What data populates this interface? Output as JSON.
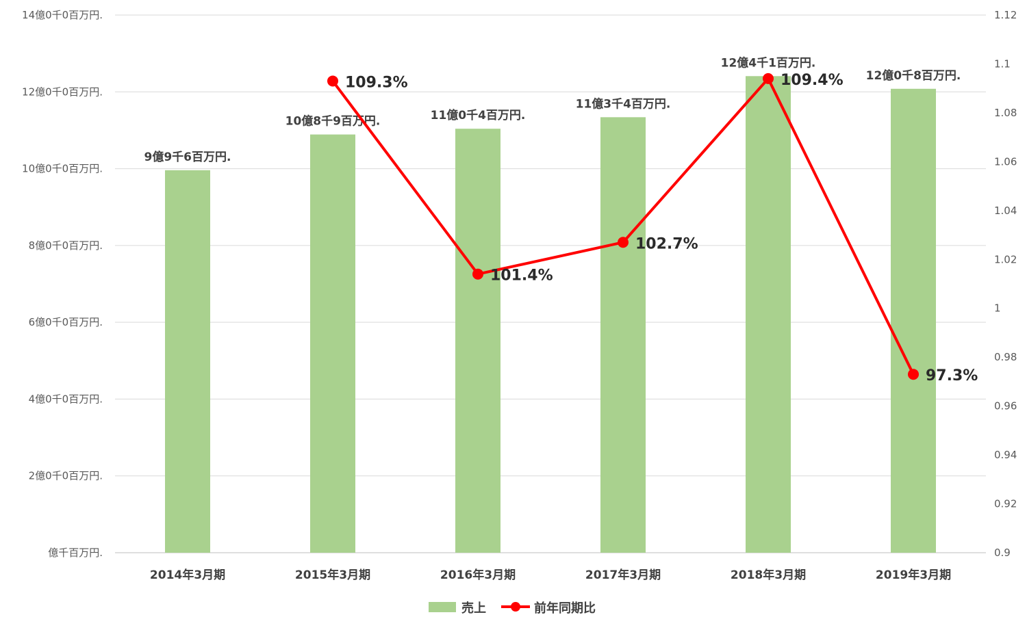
{
  "chart_data": {
    "type": "bar",
    "categories": [
      "2014年3月期",
      "2015年3月期",
      "2016年3月期",
      "2017年3月期",
      "2018年3月期",
      "2019年3月期"
    ],
    "series": [
      {
        "name": "売上",
        "type": "bar",
        "axis": "left",
        "color": "#a9d18e",
        "values": [
          996,
          1089,
          1104,
          1134,
          1241,
          1208
        ],
        "labels": [
          "9億9千6百万円.",
          "10億8千9百万円.",
          "11億0千4百万円.",
          "11億3千4百万円.",
          "12億4千1百万円.",
          "12億0千8百万円."
        ]
      },
      {
        "name": "前年同期比",
        "type": "line",
        "axis": "right",
        "color": "#ff0000",
        "values": [
          null,
          1.093,
          1.014,
          1.027,
          1.094,
          0.973
        ],
        "labels": [
          "",
          "109.3%",
          "101.4%",
          "102.7%",
          "109.4%",
          "97.3%"
        ]
      }
    ],
    "y_left": {
      "ylim": [
        0,
        1400
      ],
      "ticks": [
        0,
        200,
        400,
        600,
        800,
        1000,
        1200,
        1400
      ],
      "tick_labels": [
        "億千百万円.",
        "2億0千0百万円.",
        "4億0千0百万円.",
        "6億0千0百万円.",
        "8億0千0百万円.",
        "10億0千0百万円.",
        "12億0千0百万円.",
        "14億0千0百万円."
      ]
    },
    "y_right": {
      "ylim": [
        0.9,
        1.12
      ],
      "ticks": [
        0.9,
        0.92,
        0.94,
        0.96,
        0.98,
        1.0,
        1.02,
        1.04,
        1.06,
        1.08,
        1.1,
        1.12
      ],
      "tick_labels": [
        "0.9",
        "0.92",
        "0.94",
        "0.96",
        "0.98",
        "1",
        "1.02",
        "1.04",
        "1.06",
        "1.08",
        "1.1",
        "1.12"
      ]
    },
    "title": "",
    "xlabel": "",
    "ylabel": "",
    "grid": true,
    "legend_position": "bottom-center"
  }
}
